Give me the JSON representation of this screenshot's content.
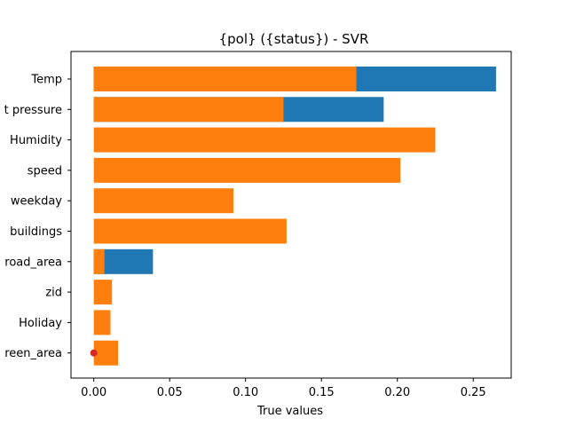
{
  "chart_data": {
    "type": "bar",
    "orientation": "horizontal",
    "title": "{pol} ({status}) - SVR",
    "xlabel": "True values",
    "ylabel": "",
    "categories": [
      "Temp",
      "t pressure",
      "Humidity",
      "speed",
      "weekday",
      "buildings",
      "road_area",
      "zid",
      "Holiday",
      "reen_area"
    ],
    "xlim": [
      -0.015,
      0.275
    ],
    "xticks": [
      "0.00",
      "0.05",
      "0.10",
      "0.15",
      "0.20",
      "0.25"
    ],
    "grid": false,
    "series": [
      {
        "color": "#1f77b4",
        "values": [
          0.265,
          0.191,
          null,
          null,
          null,
          null,
          0.039,
          null,
          null,
          null
        ]
      },
      {
        "color": "#ff7f0e",
        "values": [
          0.173,
          0.125,
          0.225,
          0.202,
          0.092,
          0.127,
          0.007,
          0.012,
          0.011,
          0.016
        ]
      }
    ],
    "markers": [
      {
        "category": "reen_area",
        "x": 0.0,
        "color": "#d62728"
      }
    ]
  }
}
